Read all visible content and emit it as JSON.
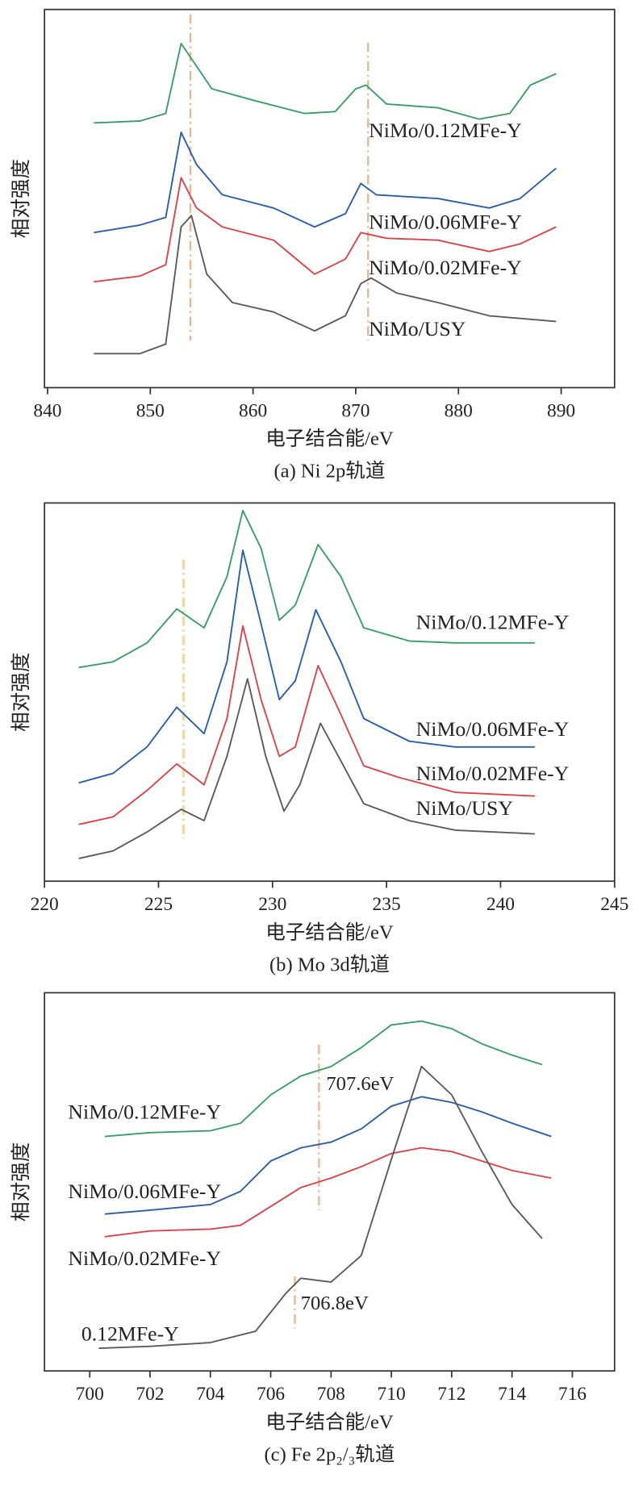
{
  "chart_data": [
    {
      "type": "line",
      "caption": "(a) Ni 2p轨道",
      "x_label": "电子结合能/eV",
      "y_label": "相对强度",
      "xlim": [
        839.7,
        895.2
      ],
      "ylim": [
        0,
        100
      ],
      "xticks": [
        840,
        850,
        860,
        870,
        880,
        890
      ],
      "vlines": [
        853.9,
        871.2
      ],
      "vline_color": "#eeb48e",
      "series": [
        {
          "name": "NiMo/0.12MFe-Y",
          "color": "#3a9c66",
          "x": [
            844.5,
            849,
            851.5,
            853,
            854.5,
            856,
            860,
            865,
            868,
            870,
            871,
            873,
            878,
            882,
            885,
            887,
            889.5
          ],
          "values": [
            70,
            70.5,
            72.5,
            91,
            85,
            79,
            76,
            72.5,
            73,
            79,
            80,
            75,
            74,
            71,
            72.5,
            80,
            83
          ]
        },
        {
          "name": "NiMo/0.06MFe-Y",
          "color": "#2a5da8",
          "x": [
            844.5,
            849,
            851.5,
            853,
            854.5,
            857,
            862,
            866,
            869,
            870.5,
            872,
            878,
            883,
            886,
            889.5
          ],
          "values": [
            41,
            43,
            45,
            67.5,
            59,
            51,
            47.5,
            42.5,
            46,
            54,
            51,
            50,
            47.5,
            50,
            58
          ]
        },
        {
          "name": "NiMo/0.02MFe-Y",
          "color": "#d9434a",
          "x": [
            844.5,
            849,
            851.5,
            853,
            854.5,
            857,
            862,
            866,
            869,
            870.5,
            873,
            878,
            883,
            886,
            889.5
          ],
          "values": [
            28,
            29.5,
            32.5,
            55.5,
            47.5,
            42.5,
            39,
            30,
            34,
            41,
            39.5,
            39,
            36,
            38,
            42.5
          ]
        },
        {
          "name": "NiMo/USY",
          "color": "#5a5a5a",
          "x": [
            844.5,
            849,
            851.5,
            853,
            854,
            855.5,
            858,
            862,
            866,
            869,
            870.5,
            871.5,
            874,
            878,
            883,
            889.5
          ],
          "values": [
            9,
            9,
            11.5,
            42.5,
            45.5,
            30,
            22.5,
            20,
            15,
            19,
            27.5,
            29,
            25,
            22.5,
            19,
            17.5
          ]
        }
      ]
    },
    {
      "type": "line",
      "caption": "(b) Mo 3d轨道",
      "x_label": "电子结合能/eV",
      "y_label": "相对强度",
      "xlim": [
        220,
        245
      ],
      "ylim": [
        0,
        100
      ],
      "xticks": [
        220,
        225,
        230,
        235,
        240,
        245
      ],
      "vlines": [
        226.1
      ],
      "vline_color": "#f0d8a8",
      "series": [
        {
          "name": "NiMo/0.12MFe-Y",
          "color": "#3a9c66",
          "x": [
            221.5,
            223,
            224.5,
            225.8,
            227,
            228,
            228.7,
            229.5,
            230.3,
            231,
            232,
            233,
            234,
            236,
            238,
            241.5
          ],
          "values": [
            56.5,
            58,
            63,
            72,
            67,
            80.5,
            98,
            88,
            69,
            73,
            89,
            80.5,
            67,
            63.5,
            63,
            63
          ]
        },
        {
          "name": "NiMo/0.06MFe-Y",
          "color": "#2a5da8",
          "x": [
            221.5,
            223,
            224.5,
            225.8,
            227,
            228,
            228.7,
            229.5,
            230.3,
            231,
            231.9,
            233,
            234,
            236,
            238,
            241.5
          ],
          "values": [
            26,
            28.5,
            35.5,
            46,
            39,
            58,
            87.5,
            68,
            48,
            53,
            71.75,
            58,
            43,
            37,
            35.5,
            35.5
          ]
        },
        {
          "name": "NiMo/0.02MFe-Y",
          "color": "#d9434a",
          "x": [
            221.5,
            223,
            224.5,
            225.8,
            227,
            228,
            228.7,
            229.5,
            230.3,
            231,
            232,
            233,
            234,
            235.5,
            238,
            241.5
          ],
          "values": [
            15,
            17,
            24,
            31,
            25.5,
            43,
            67.5,
            48,
            33,
            35.5,
            57,
            44,
            30.5,
            27.5,
            23.5,
            22.5
          ]
        },
        {
          "name": "NiMo/USY",
          "color": "#5a5a5a",
          "x": [
            221.5,
            223,
            224.5,
            226,
            227,
            228,
            228.9,
            229.7,
            230.5,
            231.2,
            232.1,
            233,
            234,
            236,
            238,
            241.5
          ],
          "values": [
            6,
            8,
            13,
            19,
            16,
            33,
            53.5,
            33,
            18.5,
            25.5,
            41.75,
            31.75,
            20.5,
            16,
            13.5,
            12.5
          ]
        }
      ]
    },
    {
      "type": "line",
      "caption": "(c) Fe 2p₂/₃轨道",
      "x_label": "电子结合能/eV",
      "y_label": "相对强度",
      "xlim": [
        698.5,
        717.4
      ],
      "ylim": [
        0,
        100
      ],
      "xticks": [
        700,
        702,
        704,
        706,
        708,
        710,
        712,
        714,
        716
      ],
      "vlines": [
        {
          "value": 707.6,
          "label": "707.6eV"
        },
        {
          "value": 706.8,
          "label": "706.8eV"
        }
      ],
      "vline_color": "#eeb48e",
      "series": [
        {
          "name": "NiMo/0.12MFe-Y",
          "color": "#3a9c66",
          "x": [
            700.5,
            702,
            704,
            705,
            706,
            707,
            708,
            709,
            710,
            711,
            712,
            713,
            714,
            715
          ],
          "values": [
            62,
            63,
            63.5,
            65.5,
            73,
            78,
            80.5,
            85.5,
            91.5,
            92.5,
            90.5,
            86.5,
            83.5,
            81
          ]
        },
        {
          "name": "NiMo/0.06MFe-Y",
          "color": "#2a5da8",
          "x": [
            700.5,
            702,
            704,
            705,
            706,
            707,
            708,
            709,
            710,
            711,
            712,
            713,
            714,
            715.3
          ],
          "values": [
            41.5,
            42.5,
            44,
            47.5,
            55.5,
            59,
            60.5,
            64,
            70,
            72.5,
            71,
            68.5,
            65.5,
            62
          ]
        },
        {
          "name": "NiMo/0.02MFe-Y",
          "color": "#d9434a",
          "x": [
            700.5,
            702,
            704,
            705,
            706,
            707,
            708,
            709,
            710,
            711,
            712,
            713,
            714,
            715.3
          ],
          "values": [
            35.5,
            37,
            37.5,
            38.5,
            43.5,
            48.5,
            51,
            54,
            57.5,
            59,
            58,
            55.5,
            53,
            51
          ]
        },
        {
          "name": "0.12MFe-Y",
          "color": "#5a5a5a",
          "x": [
            700.3,
            702,
            704,
            705.5,
            706.5,
            707,
            708,
            709,
            710,
            711,
            712,
            713,
            714,
            715
          ],
          "values": [
            6,
            6.5,
            7.5,
            10.5,
            20.5,
            24.5,
            23.5,
            30.5,
            56,
            80.5,
            73,
            58,
            44,
            35
          ]
        }
      ]
    }
  ]
}
